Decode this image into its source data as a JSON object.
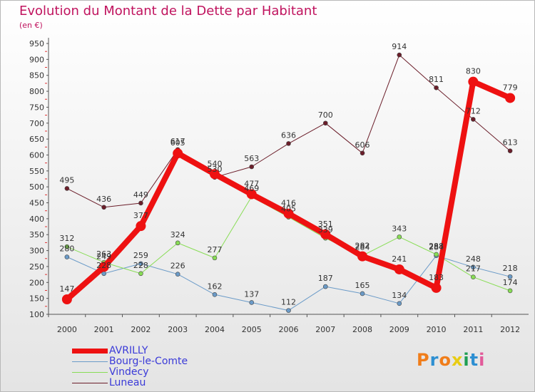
{
  "title": "Evolution du Montant de la Dette par Habitant",
  "subtitle": "(en €)",
  "brand": {
    "letters": [
      "P",
      "r",
      "o",
      "x",
      "i",
      "t",
      "i"
    ],
    "colors": [
      "#f07d1a",
      "#2d8fd2",
      "#f07d1a",
      "#e8cc14",
      "#1f9e53",
      "#2d8fd2",
      "#e25a9a"
    ]
  },
  "chart_data": {
    "type": "line",
    "title": "Evolution du Montant de la Dette par Habitant",
    "subtitle": "(en €)",
    "xlabel": "",
    "ylabel": "",
    "x": [
      "2000",
      "2001",
      "2002",
      "2003",
      "2004",
      "2005",
      "2006",
      "2007",
      "2008",
      "2009",
      "2010",
      "2011",
      "2012"
    ],
    "y_ticks": [
      100,
      150,
      200,
      250,
      300,
      350,
      400,
      450,
      500,
      550,
      600,
      650,
      700,
      750,
      800,
      850,
      900,
      950
    ],
    "ylim": [
      100,
      950
    ],
    "grid": false,
    "legend_position": "bottom-left",
    "series": [
      {
        "name": "AVRILLY",
        "color": "#ee1111",
        "line_width": 8,
        "marker_size": 7,
        "label_key": "avrilly",
        "values": [
          147,
          249,
          377,
          605,
          540,
          477,
          416,
          351,
          282,
          241,
          183,
          830,
          779
        ]
      },
      {
        "name": "Bourg-le-Comte",
        "color": "#6b9bc8",
        "line_width": 1,
        "marker_size": 3,
        "label_key": "bourg",
        "values": [
          280,
          228,
          259,
          226,
          162,
          137,
          112,
          187,
          165,
          134,
          284,
          248,
          218
        ]
      },
      {
        "name": "Vindecy",
        "color": "#88dd55",
        "line_width": 1,
        "marker_size": 3,
        "label_key": "vindecy",
        "values": [
          312,
          263,
          228,
          324,
          277,
          469,
          405,
          339,
          284,
          343,
          288,
          217,
          174
        ]
      },
      {
        "name": "Luneau",
        "color": "#6b1e2a",
        "line_width": 1,
        "marker_size": 3,
        "label_key": "luneau",
        "values": [
          495,
          436,
          449,
          617,
          530,
          563,
          636,
          700,
          606,
          914,
          811,
          712,
          613
        ]
      }
    ]
  }
}
